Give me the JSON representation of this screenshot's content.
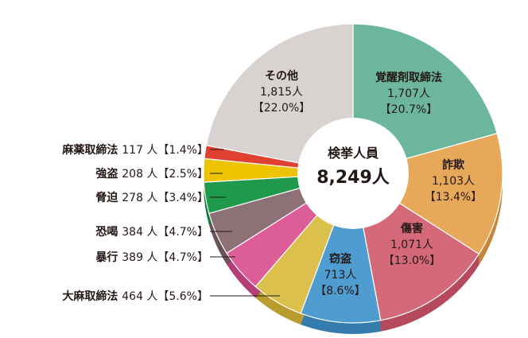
{
  "chart_data": {
    "type": "pie",
    "title": "検挙人員",
    "total": "8,249人",
    "slices": [
      {
        "name": "覚醒剤取締法",
        "value": 1707,
        "value_text": "1,707人",
        "pct_text": "【20.7%】",
        "pct": 20.7,
        "color": "#6db69e",
        "side": "#4d9580"
      },
      {
        "name": "詐欺",
        "value": 1103,
        "value_text": "1,103人",
        "pct_text": "【13.4%】",
        "pct": 13.4,
        "color": "#e8a85a",
        "side": "#c6863b"
      },
      {
        "name": "傷害",
        "value": 1071,
        "value_text": "1,071人",
        "pct_text": "【13.0%】",
        "pct": 13.0,
        "color": "#d4697a",
        "side": "#b44a5c"
      },
      {
        "name": "窃盗",
        "value": 713,
        "value_text": "713人",
        "pct_text": "【8.6%】",
        "pct": 8.6,
        "color": "#4f9dd0",
        "side": "#347cad"
      },
      {
        "name": "大麻取締法",
        "value": 464,
        "value_text": "464 人",
        "pct_text": "【5.6%】",
        "pct": 5.6,
        "color": "#dcc04e",
        "side": "#b99d2f"
      },
      {
        "name": "暴行",
        "value": 389,
        "value_text": "389 人",
        "pct_text": "【4.7%】",
        "pct": 4.7,
        "color": "#dc5d97",
        "side": "#b63f78"
      },
      {
        "name": "恐喝",
        "value": 384,
        "value_text": "384 人",
        "pct_text": "【4.7%】",
        "pct": 4.7,
        "color": "#8e7077",
        "side": "#6c535a"
      },
      {
        "name": "脅迫",
        "value": 278,
        "value_text": "278 人",
        "pct_text": "【3.4%】",
        "pct": 3.4,
        "color": "#1f9a4c",
        "side": "#167a3b"
      },
      {
        "name": "強盗",
        "value": 208,
        "value_text": "208 人",
        "pct_text": "【2.5%】",
        "pct": 2.5,
        "color": "#eec300",
        "side": "#c9a300"
      },
      {
        "name": "麻薬取締法",
        "value": 117,
        "value_text": "117 人",
        "pct_text": "【1.4%】",
        "pct": 1.4,
        "color": "#e0402f",
        "side": "#b82c1e"
      },
      {
        "name": "その他",
        "value": 1815,
        "value_text": "1,815人",
        "pct_text": "【22.0%】",
        "pct": 22.0,
        "color": "#d8d3d0",
        "side": "#b3aca8"
      }
    ]
  }
}
